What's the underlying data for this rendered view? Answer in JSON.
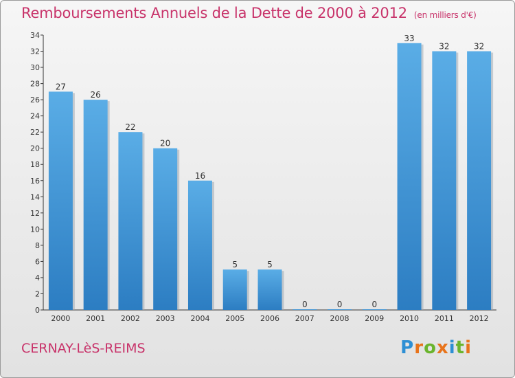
{
  "title": "Remboursements Annuels de la Dette de 2000 à 2012",
  "unit": "(en milliers d'€)",
  "commune": "CERNAY-LèS-REIMS",
  "logo": {
    "text": "Proxiti",
    "letters": [
      {
        "ch": "P",
        "color": "#2d8fd4"
      },
      {
        "ch": "r",
        "color": "#e8731a"
      },
      {
        "ch": "o",
        "color": "#6ab42d"
      },
      {
        "ch": "x",
        "color": "#e8731a"
      },
      {
        "ch": "i",
        "color": "#2d8fd4"
      },
      {
        "ch": "t",
        "color": "#6ab42d"
      },
      {
        "ch": "i",
        "color": "#e8731a"
      }
    ]
  },
  "colors": {
    "bar_top": "#5aade6",
    "bar_bottom": "#2c7dc2",
    "title": "#c8336a",
    "axis": "#333333"
  },
  "chart_data": {
    "type": "bar",
    "categories": [
      "2000",
      "2001",
      "2002",
      "2003",
      "2004",
      "2005",
      "2006",
      "2007",
      "2008",
      "2009",
      "2010",
      "2011",
      "2012"
    ],
    "values": [
      27,
      26,
      22,
      20,
      16,
      5,
      5,
      0,
      0,
      0,
      33,
      32,
      32
    ],
    "data_labels": [
      "27",
      "26",
      "22",
      "20",
      "16",
      "5",
      "5",
      "0",
      "0",
      "0",
      "33",
      "32",
      "32"
    ],
    "ylim": [
      0,
      34
    ],
    "yticks": [
      "0",
      "2",
      "4",
      "6",
      "8",
      "10",
      "12",
      "14",
      "16",
      "18",
      "20",
      "22",
      "24",
      "26",
      "28",
      "30",
      "32",
      "34"
    ],
    "grid": false,
    "legend": "none"
  }
}
